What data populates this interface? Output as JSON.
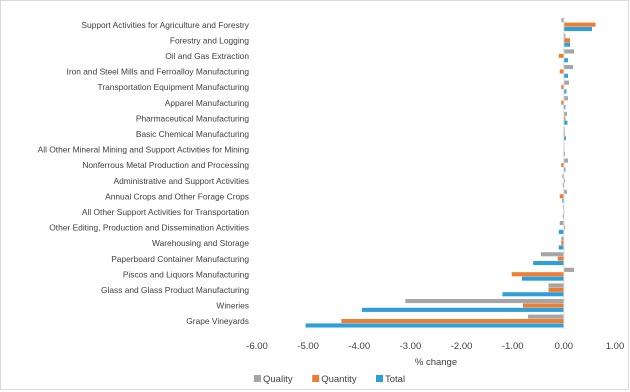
{
  "chart_data": {
    "type": "bar",
    "orientation": "horizontal",
    "title": "",
    "xlabel": "% change",
    "ylabel": "",
    "xlim": [
      -6.0,
      1.0
    ],
    "xticks": [
      -6.0,
      -5.0,
      -4.0,
      -3.0,
      -2.0,
      -1.0,
      0.0,
      1.0
    ],
    "xtick_labels": [
      "-6.00",
      "-5.00",
      "-4.00",
      "-3.00",
      "-2.00",
      "-1.00",
      "0.00",
      "1.00"
    ],
    "grid": false,
    "legend_position": "bottom",
    "categories": [
      "Support Activities for Agriculture and Forestry",
      "Forestry and Logging",
      "Oil and Gas Extraction",
      "Iron and Steel Mills and Ferroalloy Manufacturing",
      "Transportation Equipment Manufacturing",
      "Apparel Manufacturing",
      "Pharmaceutical Manufacturing",
      "Basic Chemical Manufacturing",
      "All Other Mineral Mining and Support Activities for Mining",
      "Nonferrous Metal Production and Processing",
      "Administrative and Support Activities",
      "Annual Crops and Other Forage Crops",
      "All Other Support Activities for Transportation",
      "Other Editing, Production and Dissemination Activities",
      "Warehousing and Storage",
      "Paperboard Container Manufacturing",
      "Piscos and Liquors Manufacturing",
      "Glass and Glass Product Manufacturing",
      "Wineries",
      "Grape Vineyards"
    ],
    "series": [
      {
        "name": "Quality",
        "color": "#a5a5a5",
        "values": [
          -0.05,
          0.03,
          0.2,
          0.18,
          0.1,
          0.08,
          0.06,
          0.02,
          0.01,
          0.08,
          -0.03,
          0.06,
          -0.02,
          -0.08,
          -0.05,
          -0.45,
          0.2,
          -0.3,
          -3.1,
          -0.7
        ]
      },
      {
        "name": "Quantity",
        "color": "#ed7d31",
        "values": [
          0.62,
          0.12,
          -0.1,
          -0.08,
          -0.05,
          -0.05,
          0.03,
          0.02,
          0.01,
          -0.05,
          0.02,
          -0.08,
          0.01,
          0.02,
          -0.05,
          -0.12,
          -1.02,
          -0.3,
          -0.8,
          -4.35
        ]
      },
      {
        "name": "Total",
        "color": "#2e9fd9",
        "values": [
          0.55,
          0.12,
          0.08,
          0.08,
          0.05,
          0.03,
          0.07,
          0.04,
          0.02,
          0.03,
          -0.02,
          -0.03,
          -0.02,
          -0.1,
          -0.1,
          -0.6,
          -0.82,
          -1.2,
          -3.95,
          -5.05
        ]
      }
    ]
  }
}
